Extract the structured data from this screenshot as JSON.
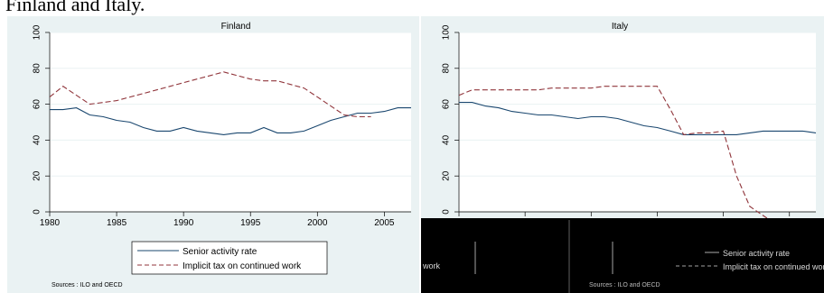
{
  "caption": "Finland and Italy.",
  "colors": {
    "panel_bg": "#eaf2f3",
    "plot_bg": "#ffffff",
    "activity": "#1a476f",
    "tax": "#90353b",
    "axis": "#000000",
    "dark_strip": "#000000"
  },
  "legend": {
    "activity_label": "Senior activity rate",
    "tax_label": "Implicit tax on continued work",
    "partial_work_text": "work"
  },
  "sources": "Sources : ILO and OECD",
  "chart_data": [
    {
      "type": "line",
      "title": "Finland",
      "xlabel": "",
      "ylabel": "",
      "xlim": [
        1980,
        2007
      ],
      "ylim": [
        0,
        100
      ],
      "xticks": [
        1980,
        1985,
        1990,
        1995,
        2000,
        2005
      ],
      "yticks": [
        0,
        20,
        40,
        60,
        80,
        100
      ],
      "grid": true,
      "legend_position": "bottom",
      "series": [
        {
          "name": "Senior activity rate",
          "style": "solid",
          "x": [
            1980,
            1981,
            1982,
            1983,
            1984,
            1985,
            1986,
            1987,
            1988,
            1989,
            1990,
            1991,
            1992,
            1993,
            1994,
            1995,
            1996,
            1997,
            1998,
            1999,
            2000,
            2001,
            2002,
            2003,
            2004,
            2005,
            2006,
            2007
          ],
          "y": [
            57,
            57,
            58,
            54,
            53,
            51,
            50,
            47,
            45,
            45,
            47,
            45,
            44,
            43,
            44,
            44,
            47,
            44,
            44,
            45,
            48,
            51,
            53,
            55,
            55,
            56,
            58,
            58
          ]
        },
        {
          "name": "Implicit tax on continued work",
          "style": "dashed",
          "x": [
            1980,
            1981,
            1982,
            1983,
            1984,
            1985,
            1986,
            1987,
            1988,
            1989,
            1990,
            1991,
            1992,
            1993,
            1994,
            1995,
            1996,
            1997,
            1998,
            1999,
            2000,
            2001,
            2002,
            2003,
            2004
          ],
          "y": [
            64,
            70,
            65,
            60,
            61,
            62,
            64,
            66,
            68,
            70,
            72,
            74,
            76,
            78,
            76,
            74,
            73,
            73,
            71,
            69,
            64,
            59,
            54,
            53,
            53
          ]
        }
      ]
    },
    {
      "type": "line",
      "title": "Italy",
      "xlabel": "",
      "ylabel": "",
      "xlim": [
        1980,
        2007
      ],
      "ylim": [
        0,
        100
      ],
      "xticks": [
        1980,
        1985,
        1990,
        1995,
        2000,
        2005
      ],
      "yticks": [
        0,
        20,
        40,
        60,
        80,
        100
      ],
      "xtick_labels_visible": false,
      "grid": true,
      "legend_position": "bottom",
      "series": [
        {
          "name": "Senior activity rate",
          "style": "solid",
          "x": [
            1980,
            1981,
            1982,
            1983,
            1984,
            1985,
            1986,
            1987,
            1988,
            1989,
            1990,
            1991,
            1992,
            1993,
            1994,
            1995,
            1996,
            1997,
            1998,
            1999,
            2000,
            2001,
            2002,
            2003,
            2004,
            2005,
            2006,
            2007
          ],
          "y": [
            61,
            61,
            59,
            58,
            56,
            55,
            54,
            54,
            53,
            52,
            53,
            53,
            52,
            50,
            48,
            47,
            45,
            43,
            43,
            43,
            43,
            43,
            44,
            45,
            45,
            45,
            45,
            44
          ]
        },
        {
          "name": "Implicit tax on continued work",
          "style": "dashed",
          "x": [
            1980,
            1981,
            1982,
            1983,
            1984,
            1985,
            1986,
            1987,
            1988,
            1989,
            1990,
            1991,
            1992,
            1993,
            1994,
            1995,
            1996,
            1997,
            1998,
            1999,
            2000,
            2001,
            2002,
            2003,
            2004
          ],
          "y": [
            65,
            68,
            68,
            68,
            68,
            68,
            68,
            69,
            69,
            69,
            69,
            70,
            70,
            70,
            70,
            70,
            57,
            43,
            44,
            44,
            45,
            20,
            3,
            -2,
            -7
          ]
        }
      ]
    }
  ]
}
